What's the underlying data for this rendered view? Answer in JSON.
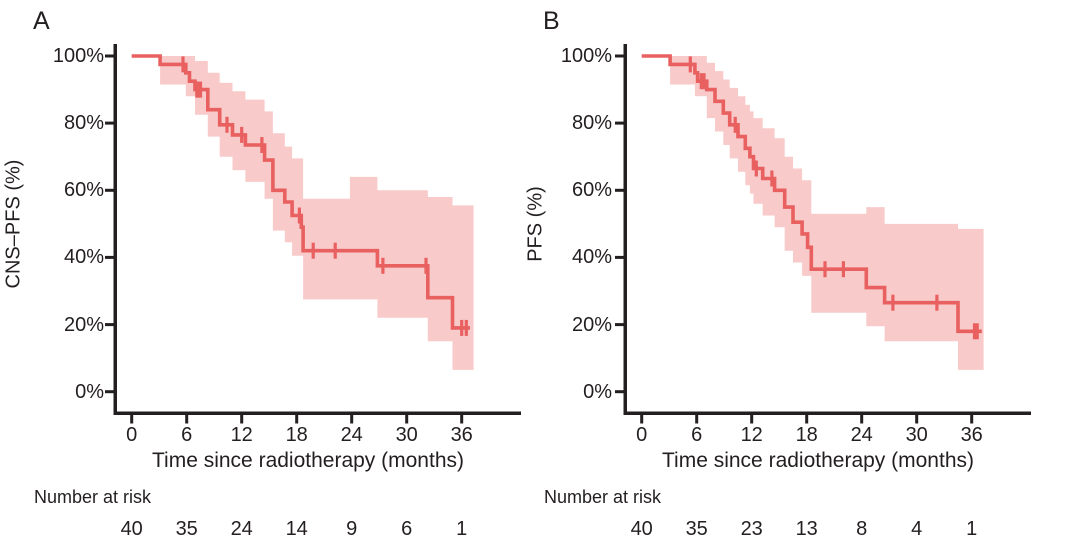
{
  "figure": {
    "background": "#ffffff",
    "risk_table_title": "Number at risk"
  },
  "colors": {
    "curve": "#e8605f",
    "band": "#f9caca",
    "axis": "#231f20",
    "text": "#231f20"
  },
  "chart_data": [
    {
      "type": "line",
      "subtype": "kaplan-meier-step",
      "panel_label": "A",
      "ylabel": "CNS–PFS (%)",
      "xlabel": "Time since radiotherapy (months)",
      "x_ticks": [
        0,
        6,
        12,
        18,
        24,
        30,
        36
      ],
      "y_tick_labels": [
        "100%",
        "80%",
        "60%",
        "40%",
        "20%",
        "0%"
      ],
      "xlim": [
        0,
        42
      ],
      "ylim": [
        0,
        100
      ],
      "grid": false,
      "legend": "none",
      "steps": [
        [
          0,
          100
        ],
        [
          3.1,
          97.5
        ],
        [
          5.9,
          95
        ],
        [
          6.3,
          92.5
        ],
        [
          6.9,
          90
        ],
        [
          8.3,
          84
        ],
        [
          9.6,
          79.5
        ],
        [
          11.0,
          76.5
        ],
        [
          12.4,
          73.5
        ],
        [
          14.5,
          69
        ],
        [
          15.4,
          60
        ],
        [
          16.7,
          56.5
        ],
        [
          17.5,
          52.5
        ],
        [
          18.5,
          49
        ],
        [
          18.7,
          42
        ],
        [
          26.8,
          37.5
        ],
        [
          32.3,
          28
        ],
        [
          35.0,
          19
        ]
      ],
      "curve_end": 36.9,
      "censor_marks": [
        [
          5.6,
          97.5
        ],
        [
          7.1,
          90
        ],
        [
          7.3,
          90
        ],
        [
          7.5,
          90
        ],
        [
          10.4,
          79.5
        ],
        [
          12.0,
          76.5
        ],
        [
          14.2,
          73.5
        ],
        [
          18.3,
          52.5
        ],
        [
          19.8,
          42
        ],
        [
          22.2,
          42
        ],
        [
          27.4,
          37.5
        ],
        [
          32.1,
          37.5
        ],
        [
          36.0,
          19
        ],
        [
          36.5,
          19
        ]
      ],
      "ci_upper": [
        [
          3.1,
          100
        ],
        [
          6.9,
          98.5
        ],
        [
          8.3,
          95
        ],
        [
          9.6,
          92
        ],
        [
          11.0,
          89.5
        ],
        [
          12.4,
          87
        ],
        [
          14.5,
          83.5
        ],
        [
          15.4,
          77
        ],
        [
          16.7,
          73
        ],
        [
          17.5,
          69.5
        ],
        [
          18.7,
          57.5
        ],
        [
          23.8,
          64
        ],
        [
          26.8,
          60
        ],
        [
          32.3,
          58
        ],
        [
          35.0,
          55.5
        ]
      ],
      "ci_lower": [
        [
          3.1,
          91.5
        ],
        [
          5.9,
          88
        ],
        [
          6.9,
          82.5
        ],
        [
          8.3,
          76
        ],
        [
          9.6,
          70
        ],
        [
          11.0,
          66
        ],
        [
          12.4,
          62.5
        ],
        [
          14.5,
          57.5
        ],
        [
          15.4,
          48
        ],
        [
          16.7,
          44.5
        ],
        [
          17.5,
          40.5
        ],
        [
          18.7,
          27.5
        ],
        [
          26.8,
          22
        ],
        [
          32.3,
          15
        ],
        [
          35.0,
          6.5
        ]
      ],
      "band_end": 37.3,
      "number_at_risk_label": "Number at risk",
      "number_at_risk": [
        40,
        35,
        24,
        14,
        9,
        6,
        1
      ]
    },
    {
      "type": "line",
      "subtype": "kaplan-meier-step",
      "panel_label": "B",
      "ylabel": "PFS (%)",
      "xlabel": "Time since radiotherapy (months)",
      "x_ticks": [
        0,
        6,
        12,
        18,
        24,
        30,
        36
      ],
      "y_tick_labels": [
        "100%",
        "80%",
        "60%",
        "40%",
        "20%",
        "0%"
      ],
      "xlim": [
        0,
        42
      ],
      "ylim": [
        0,
        100
      ],
      "grid": false,
      "legend": "none",
      "steps": [
        [
          0,
          100
        ],
        [
          3.1,
          97.5
        ],
        [
          5.8,
          95
        ],
        [
          6.1,
          92.5
        ],
        [
          7.1,
          90
        ],
        [
          8.0,
          86.5
        ],
        [
          8.9,
          83
        ],
        [
          9.6,
          79.5
        ],
        [
          10.5,
          76
        ],
        [
          11.3,
          72.5
        ],
        [
          11.8,
          70
        ],
        [
          12.2,
          66.5
        ],
        [
          13.2,
          63.5
        ],
        [
          14.5,
          60
        ],
        [
          15.6,
          55
        ],
        [
          16.5,
          50.5
        ],
        [
          17.5,
          47
        ],
        [
          18.1,
          43
        ],
        [
          18.5,
          36.5
        ],
        [
          24.5,
          31
        ],
        [
          26.5,
          26.5
        ],
        [
          34.5,
          18
        ]
      ],
      "curve_end": 37.1,
      "censor_marks": [
        [
          5.3,
          97.5
        ],
        [
          6.5,
          92.5
        ],
        [
          6.8,
          92.5
        ],
        [
          10.2,
          79.5
        ],
        [
          12.5,
          66.5
        ],
        [
          14.2,
          63.5
        ],
        [
          20.0,
          36.5
        ],
        [
          22.0,
          36.5
        ],
        [
          27.4,
          26.5
        ],
        [
          32.2,
          26.5
        ],
        [
          36.3,
          18
        ],
        [
          36.6,
          18
        ]
      ],
      "ci_upper": [
        [
          3.1,
          100
        ],
        [
          7.1,
          98
        ],
        [
          8.0,
          95.5
        ],
        [
          8.9,
          93
        ],
        [
          9.6,
          90.5
        ],
        [
          10.5,
          88
        ],
        [
          11.3,
          85.5
        ],
        [
          11.8,
          83.5
        ],
        [
          12.2,
          81.5
        ],
        [
          13.2,
          78.5
        ],
        [
          14.5,
          75.5
        ],
        [
          15.6,
          70
        ],
        [
          16.5,
          66.5
        ],
        [
          17.5,
          63
        ],
        [
          18.5,
          53
        ],
        [
          24.5,
          55
        ],
        [
          26.5,
          50
        ],
        [
          34.5,
          48.5
        ]
      ],
      "ci_lower": [
        [
          3.1,
          91.5
        ],
        [
          5.8,
          88
        ],
        [
          7.1,
          81.5
        ],
        [
          8.0,
          77.5
        ],
        [
          8.9,
          73.5
        ],
        [
          9.6,
          69.5
        ],
        [
          10.5,
          65.5
        ],
        [
          11.3,
          61.5
        ],
        [
          11.8,
          59
        ],
        [
          12.2,
          56
        ],
        [
          13.2,
          52.5
        ],
        [
          14.5,
          49
        ],
        [
          15.6,
          42
        ],
        [
          16.5,
          38.5
        ],
        [
          17.5,
          34.5
        ],
        [
          18.5,
          23.5
        ],
        [
          24.5,
          19.5
        ],
        [
          26.5,
          15
        ],
        [
          34.5,
          6.5
        ]
      ],
      "band_end": 37.3,
      "number_at_risk_label": "Number at risk",
      "number_at_risk": [
        40,
        35,
        23,
        13,
        8,
        4,
        1
      ]
    }
  ]
}
